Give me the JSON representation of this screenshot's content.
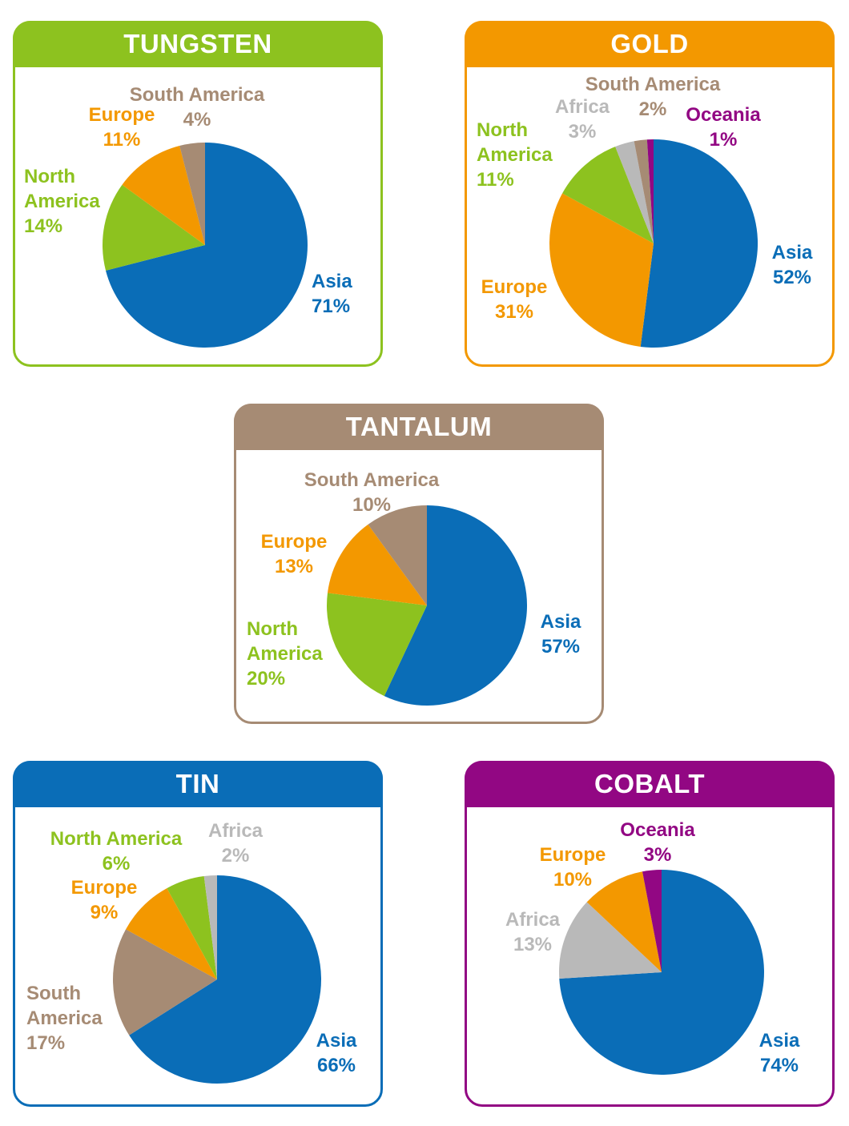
{
  "colors": {
    "asia": "#0a6db7",
    "europe": "#f39800",
    "north_america": "#8dc21f",
    "south_america": "#a68b74",
    "africa": "#b9b9b9",
    "oceania": "#920783"
  },
  "chart_data": [
    {
      "type": "pie",
      "title": "TUNGSTEN",
      "accent": "#8dc21f",
      "slices": [
        {
          "label": "Asia",
          "value": 71,
          "pct": "71%",
          "color": "#0a6db7"
        },
        {
          "label": "North America",
          "value": 14,
          "pct": "14%",
          "color": "#8dc21f"
        },
        {
          "label": "Europe",
          "value": 11,
          "pct": "11%",
          "color": "#f39800"
        },
        {
          "label": "South America",
          "value": 4,
          "pct": "4%",
          "color": "#a68b74"
        }
      ]
    },
    {
      "type": "pie",
      "title": "GOLD",
      "accent": "#f39800",
      "slices": [
        {
          "label": "Asia",
          "value": 52,
          "pct": "52%",
          "color": "#0a6db7"
        },
        {
          "label": "Europe",
          "value": 31,
          "pct": "31%",
          "color": "#f39800"
        },
        {
          "label": "North America",
          "value": 11,
          "pct": "11%",
          "color": "#8dc21f"
        },
        {
          "label": "Africa",
          "value": 3,
          "pct": "3%",
          "color": "#b9b9b9"
        },
        {
          "label": "South America",
          "value": 2,
          "pct": "2%",
          "color": "#a68b74"
        },
        {
          "label": "Oceania",
          "value": 1,
          "pct": "1%",
          "color": "#920783"
        }
      ]
    },
    {
      "type": "pie",
      "title": "TANTALUM",
      "accent": "#a68b74",
      "slices": [
        {
          "label": "Asia",
          "value": 57,
          "pct": "57%",
          "color": "#0a6db7"
        },
        {
          "label": "North America",
          "value": 20,
          "pct": "20%",
          "color": "#8dc21f"
        },
        {
          "label": "Europe",
          "value": 13,
          "pct": "13%",
          "color": "#f39800"
        },
        {
          "label": "South America",
          "value": 10,
          "pct": "10%",
          "color": "#a68b74"
        }
      ]
    },
    {
      "type": "pie",
      "title": "TIN",
      "accent": "#0a6db7",
      "slices": [
        {
          "label": "Asia",
          "value": 66,
          "pct": "66%",
          "color": "#0a6db7"
        },
        {
          "label": "South America",
          "value": 17,
          "pct": "17%",
          "color": "#a68b74"
        },
        {
          "label": "Europe",
          "value": 9,
          "pct": "9%",
          "color": "#f39800"
        },
        {
          "label": "North America",
          "value": 6,
          "pct": "6%",
          "color": "#8dc21f"
        },
        {
          "label": "Africa",
          "value": 2,
          "pct": "2%",
          "color": "#b9b9b9"
        }
      ]
    },
    {
      "type": "pie",
      "title": "COBALT",
      "accent": "#920783",
      "slices": [
        {
          "label": "Asia",
          "value": 74,
          "pct": "74%",
          "color": "#0a6db7"
        },
        {
          "label": "Africa",
          "value": 13,
          "pct": "13%",
          "color": "#b9b9b9"
        },
        {
          "label": "Europe",
          "value": 10,
          "pct": "10%",
          "color": "#f39800"
        },
        {
          "label": "Oceania",
          "value": 3,
          "pct": "3%",
          "color": "#920783"
        }
      ]
    }
  ]
}
